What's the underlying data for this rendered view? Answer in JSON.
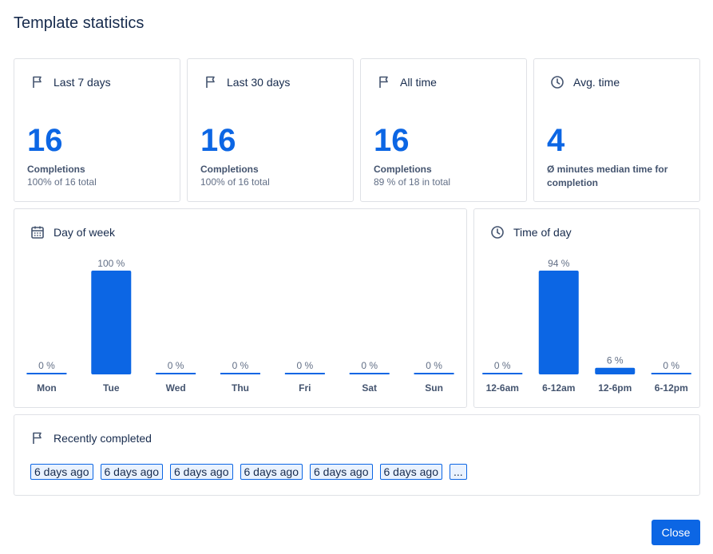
{
  "title": "Template statistics",
  "stats": [
    {
      "label": "Last 7 days",
      "icon": "flag-icon",
      "value": "16",
      "caption": "Completions",
      "sub": "100% of 16 total"
    },
    {
      "label": "Last 30 days",
      "icon": "flag-icon",
      "value": "16",
      "caption": "Completions",
      "sub": "100% of 16 total"
    },
    {
      "label": "All time",
      "icon": "flag-icon",
      "value": "16",
      "caption": "Completions",
      "sub": "89 % of 18 in total"
    },
    {
      "label": "Avg. time",
      "icon": "clock-icon",
      "value": "4",
      "caption": "Ø minutes median time for completion",
      "sub": ""
    }
  ],
  "day_of_week": {
    "label": "Day of week",
    "icon": "calendar-icon"
  },
  "time_of_day": {
    "label": "Time of day",
    "icon": "clock-icon"
  },
  "chart_data": [
    {
      "type": "bar",
      "title": "Day of week",
      "categories": [
        "Mon",
        "Tue",
        "Wed",
        "Thu",
        "Fri",
        "Sat",
        "Sun"
      ],
      "values": [
        0,
        100,
        0,
        0,
        0,
        0,
        0
      ],
      "value_labels": [
        "0 %",
        "100 %",
        "0 %",
        "0 %",
        "0 %",
        "0 %",
        "0 %"
      ],
      "ylim": [
        0,
        100
      ]
    },
    {
      "type": "bar",
      "title": "Time of day",
      "categories": [
        "12-6am",
        "6-12am",
        "12-6pm",
        "6-12pm"
      ],
      "values": [
        0,
        94,
        6,
        0
      ],
      "value_labels": [
        "0 %",
        "94 %",
        "6 %",
        "0 %"
      ],
      "ylim": [
        0,
        94
      ]
    }
  ],
  "recent": {
    "label": "Recently completed",
    "icon": "flag-icon",
    "items": [
      "6 days ago",
      "6 days ago",
      "6 days ago",
      "6 days ago",
      "6 days ago",
      "6 days ago"
    ],
    "more": "..."
  },
  "close_label": "Close",
  "colors": {
    "accent": "#0c66e4",
    "border": "#dfe1e6"
  }
}
